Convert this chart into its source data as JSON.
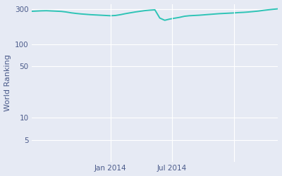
{
  "ylabel": "World Ranking",
  "line_color": "#2ec4b6",
  "background_color": "#e6eaf4",
  "fig_background": "#e6eaf4",
  "grid_color": "#ffffff",
  "tick_label_color": "#4a5a8a",
  "yticks": [
    5,
    10,
    50,
    100,
    300
  ],
  "ytick_labels": [
    "5",
    "10",
    "50",
    "100",
    "300"
  ],
  "xtick_positions": [
    0.32,
    0.57,
    0.82
  ],
  "xtick_labels": [
    "Jan 2014",
    "Jul 2014",
    ""
  ],
  "dates_numeric": [
    0.0,
    0.02,
    0.04,
    0.06,
    0.08,
    0.1,
    0.12,
    0.14,
    0.16,
    0.18,
    0.2,
    0.22,
    0.24,
    0.26,
    0.28,
    0.3,
    0.32,
    0.34,
    0.36,
    0.38,
    0.4,
    0.42,
    0.44,
    0.46,
    0.48,
    0.5,
    0.52,
    0.54,
    0.56,
    0.58,
    0.6,
    0.62,
    0.64,
    0.66,
    0.68,
    0.7,
    0.72,
    0.74,
    0.76,
    0.78,
    0.8,
    0.82,
    0.84,
    0.86,
    0.88,
    0.9,
    0.92,
    0.94,
    0.96,
    0.98,
    1.0
  ],
  "rankings": [
    278,
    280,
    282,
    283,
    281,
    279,
    277,
    272,
    265,
    260,
    256,
    253,
    250,
    248,
    246,
    244,
    242,
    244,
    250,
    258,
    265,
    272,
    278,
    284,
    288,
    291,
    225,
    210,
    218,
    224,
    230,
    238,
    242,
    244,
    246,
    249,
    252,
    255,
    258,
    260,
    262,
    264,
    267,
    269,
    272,
    276,
    280,
    286,
    291,
    296,
    300
  ],
  "ylim_log_min": 2.5,
  "ylim_log_max": 350,
  "xlim": [
    0.0,
    1.0
  ],
  "figsize": [
    4.0,
    2.5
  ],
  "dpi": 100
}
